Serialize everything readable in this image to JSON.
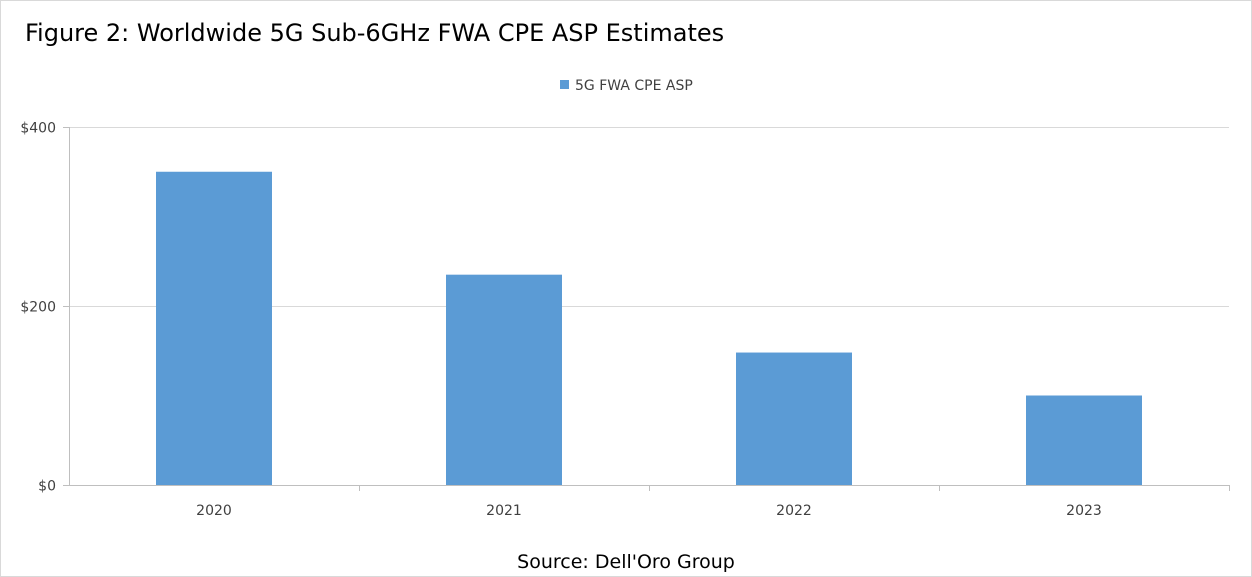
{
  "title": "Figure 2: Worldwide 5G Sub-6GHz FWA CPE ASP Estimates",
  "source": "Source: Dell'Oro Group",
  "chart_data": {
    "type": "bar",
    "categories": [
      "2020",
      "2021",
      "2022",
      "2023"
    ],
    "series": [
      {
        "name": "5G FWA CPE ASP",
        "values": [
          350,
          235,
          148,
          100
        ],
        "color": "#5b9bd5"
      }
    ],
    "ylim": [
      0,
      400
    ],
    "yticks": [
      0,
      200,
      400
    ],
    "ytick_labels": [
      "$0",
      "$200",
      "$400"
    ],
    "grid": true,
    "legend_position": "top-center"
  }
}
